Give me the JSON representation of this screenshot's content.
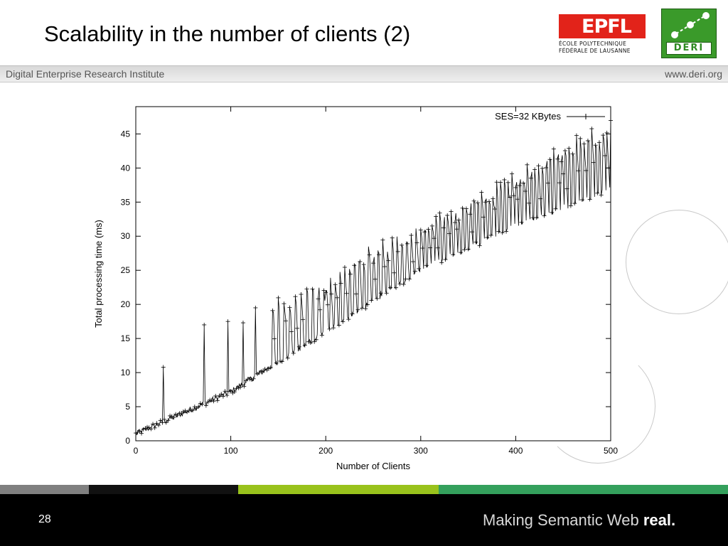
{
  "slide": {
    "title": "Scalability in the number of clients (2)",
    "page_number": "28"
  },
  "header": {
    "institute": "Digital Enterprise Research Institute",
    "website": "www.deri.org"
  },
  "logos": {
    "epfl": {
      "word": "EPFL",
      "line1": "ÉCOLE POLYTECHNIQUE",
      "line2": "FÉDÉRALE DE LAUSANNE"
    },
    "deri": {
      "word": "DERI"
    }
  },
  "footer": {
    "tagline_regular": "Making Semantic Web ",
    "tagline_bold": "real."
  },
  "colors": {
    "footer_bg": "#000000",
    "strip_gray": "#808080",
    "strip_black": "#111111",
    "strip_lime": "#99c21c",
    "strip_green": "#34a05c",
    "epfl_red": "#e2231a",
    "deri_green": "#3a9a2a"
  },
  "chart_data": {
    "type": "line",
    "xlabel": "Number of Clients",
    "ylabel": "Total processing time (ms)",
    "xlim": [
      0,
      500
    ],
    "ylim": [
      0,
      49
    ],
    "xticks": [
      0,
      100,
      200,
      300,
      400,
      500
    ],
    "yticks": [
      0,
      5,
      10,
      15,
      20,
      25,
      30,
      35,
      40,
      45
    ],
    "legend": "top-right",
    "grid": false,
    "series": [
      {
        "name": "SES=32 KBytes",
        "marker": "+",
        "baseline": {
          "x": [
            0,
            100,
            200,
            300,
            400,
            500
          ],
          "y": [
            1,
            7.2,
            16,
            25,
            31.5,
            37
          ]
        },
        "upper_envelope": {
          "x": [
            150,
            200,
            250,
            300,
            350,
            400,
            450,
            500
          ],
          "y": [
            22,
            24,
            29,
            32,
            36,
            40,
            44,
            47
          ]
        },
        "peaks": [
          {
            "x": 29,
            "y": 10.8
          },
          {
            "x": 72,
            "y": 17
          },
          {
            "x": 97,
            "y": 17.5
          },
          {
            "x": 113,
            "y": 17.3
          },
          {
            "x": 126,
            "y": 19.5
          }
        ]
      }
    ]
  }
}
